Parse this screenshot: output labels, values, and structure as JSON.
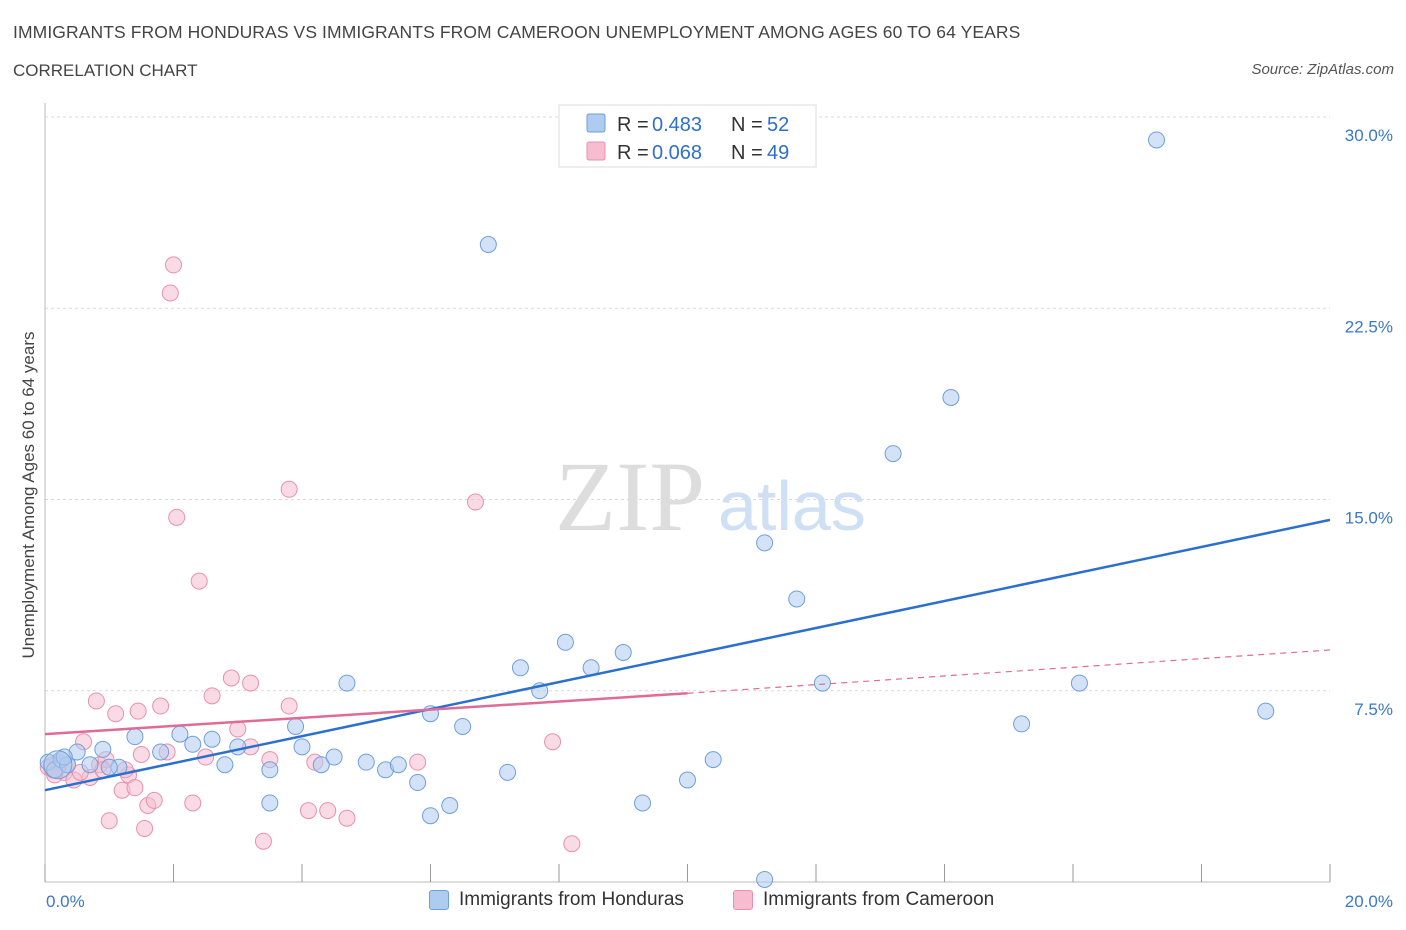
{
  "header": {
    "title": "IMMIGRANTS FROM HONDURAS VS IMMIGRANTS FROM CAMEROON UNEMPLOYMENT AMONG AGES 60 TO 64 YEARS",
    "subtitle": "CORRELATION CHART",
    "source": "Source: ZipAtlas.com"
  },
  "legend_box": {
    "rows": [
      {
        "r_label": "R = ",
        "r_value": "0.483",
        "n_label": "N = ",
        "n_value": "52",
        "color": "#aecbf0"
      },
      {
        "r_label": "R = ",
        "r_value": "0.068",
        "n_label": "N = ",
        "n_value": "49",
        "color": "#f6bdd0"
      }
    ]
  },
  "bottom_legend": {
    "honduras": "Immigrants from Honduras",
    "cameroon": "Immigrants from Cameroon"
  },
  "colors": {
    "honduras_fill": "#aecbf0",
    "honduras_stroke": "#6f9fdc",
    "honduras_line": "#2b70cf",
    "cameroon_fill": "#f6bdd0",
    "cameroon_stroke": "#e890ae",
    "cameroon_line": "#e06b95",
    "tick_text": "#3a78c9",
    "grid": "#d9d9d9"
  },
  "watermark": {
    "zip": "ZIP",
    "atlas": "atlas"
  },
  "chart_data": {
    "type": "scatter",
    "title": "IMMIGRANTS FROM HONDURAS VS IMMIGRANTS FROM CAMEROON UNEMPLOYMENT AMONG AGES 60 TO 64 YEARS",
    "ylabel": "Unemployment Among Ages 60 to 64 years",
    "xlabel": "",
    "xlim": [
      0,
      20
    ],
    "ylim": [
      0,
      30
    ],
    "x_tick_labels": [
      "0.0%",
      "20.0%"
    ],
    "y_ticks": [
      7.5,
      15,
      22.5,
      30
    ],
    "y_tick_labels": [
      "7.5%",
      "15.0%",
      "22.5%",
      "30.0%"
    ],
    "grid": true,
    "legend_position": "top-center",
    "series": [
      {
        "name": "Immigrants from Honduras",
        "R": 0.483,
        "N": 52,
        "trend": {
          "x": [
            0,
            20
          ],
          "y": [
            3.6,
            14.2
          ]
        },
        "points": [
          [
            0.05,
            4.7
          ],
          [
            0.15,
            4.4
          ],
          [
            0.25,
            4.8
          ],
          [
            0.35,
            4.6
          ],
          [
            0.5,
            5.1
          ],
          [
            0.7,
            4.6
          ],
          [
            0.9,
            5.2
          ],
          [
            1.15,
            4.5
          ],
          [
            1.4,
            5.7
          ],
          [
            1.8,
            5.1
          ],
          [
            2.1,
            5.8
          ],
          [
            2.3,
            5.4
          ],
          [
            2.6,
            5.6
          ],
          [
            2.8,
            4.6
          ],
          [
            3.0,
            5.3
          ],
          [
            3.5,
            4.4
          ],
          [
            3.5,
            3.1
          ],
          [
            3.9,
            6.1
          ],
          [
            4.0,
            5.3
          ],
          [
            4.3,
            4.6
          ],
          [
            4.5,
            4.9
          ],
          [
            4.7,
            7.8
          ],
          [
            5.0,
            4.7
          ],
          [
            5.3,
            4.4
          ],
          [
            5.5,
            4.6
          ],
          [
            5.8,
            3.9
          ],
          [
            6.0,
            6.6
          ],
          [
            6.0,
            2.6
          ],
          [
            6.3,
            3.0
          ],
          [
            6.5,
            6.1
          ],
          [
            6.9,
            25.0
          ],
          [
            7.2,
            4.3
          ],
          [
            7.4,
            8.4
          ],
          [
            7.7,
            7.5
          ],
          [
            8.1,
            9.4
          ],
          [
            8.5,
            8.4
          ],
          [
            9.0,
            9.0
          ],
          [
            9.3,
            3.1
          ],
          [
            10.0,
            4.0
          ],
          [
            10.4,
            4.8
          ],
          [
            11.2,
            0.1
          ],
          [
            11.2,
            13.3
          ],
          [
            11.7,
            11.1
          ],
          [
            12.1,
            7.8
          ],
          [
            13.2,
            16.8
          ],
          [
            14.1,
            19.0
          ],
          [
            15.2,
            6.2
          ],
          [
            16.1,
            7.8
          ],
          [
            17.3,
            29.1
          ],
          [
            19.0,
            6.7
          ],
          [
            0.3,
            4.9
          ],
          [
            1.0,
            4.5
          ]
        ]
      },
      {
        "name": "Immigrants from Cameroon",
        "R": 0.068,
        "N": 49,
        "trend": {
          "x": [
            0,
            10
          ],
          "y": [
            5.8,
            7.4
          ],
          "dashed_extension": {
            "x": [
              10,
              20
            ],
            "y": [
              7.4,
              9.1
            ]
          }
        },
        "points": [
          [
            0.05,
            4.5
          ],
          [
            0.2,
            4.7
          ],
          [
            0.3,
            4.3
          ],
          [
            0.45,
            4.0
          ],
          [
            0.6,
            5.5
          ],
          [
            0.7,
            4.1
          ],
          [
            0.8,
            7.1
          ],
          [
            0.85,
            4.6
          ],
          [
            0.95,
            4.8
          ],
          [
            1.0,
            2.4
          ],
          [
            1.1,
            6.6
          ],
          [
            1.2,
            3.6
          ],
          [
            1.3,
            4.2
          ],
          [
            1.4,
            3.7
          ],
          [
            1.45,
            6.7
          ],
          [
            1.5,
            5.0
          ],
          [
            1.55,
            2.1
          ],
          [
            1.6,
            3.0
          ],
          [
            1.7,
            3.2
          ],
          [
            1.8,
            6.9
          ],
          [
            1.9,
            5.1
          ],
          [
            1.95,
            23.1
          ],
          [
            2.0,
            24.2
          ],
          [
            2.05,
            14.3
          ],
          [
            2.3,
            3.1
          ],
          [
            2.4,
            11.8
          ],
          [
            2.5,
            4.9
          ],
          [
            2.6,
            7.3
          ],
          [
            2.9,
            8.0
          ],
          [
            3.0,
            6.0
          ],
          [
            3.2,
            5.3
          ],
          [
            3.2,
            7.8
          ],
          [
            3.4,
            1.6
          ],
          [
            3.5,
            4.8
          ],
          [
            3.8,
            6.9
          ],
          [
            3.8,
            15.4
          ],
          [
            4.1,
            2.8
          ],
          [
            4.2,
            4.7
          ],
          [
            4.4,
            2.8
          ],
          [
            4.7,
            2.5
          ],
          [
            5.8,
            4.7
          ],
          [
            6.7,
            14.9
          ],
          [
            7.9,
            5.5
          ],
          [
            8.2,
            1.5
          ],
          [
            0.35,
            4.6
          ],
          [
            0.55,
            4.3
          ],
          [
            0.15,
            4.2
          ],
          [
            1.25,
            4.4
          ],
          [
            0.9,
            4.4
          ]
        ]
      }
    ]
  }
}
